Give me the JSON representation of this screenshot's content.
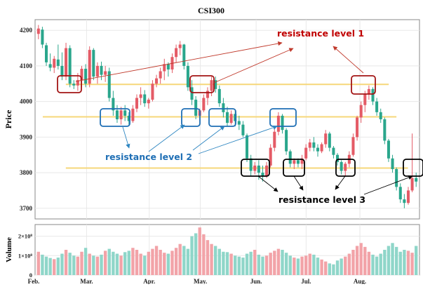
{
  "chart_data": [
    {
      "type": "candlestick",
      "title": "CSI300",
      "ylabel": "Price",
      "ylim": [
        3670,
        4230
      ],
      "yticks": [
        3700,
        3800,
        3900,
        4000,
        4100,
        4200
      ],
      "grid": true,
      "x_month_labels": [
        "Feb.",
        "Mar.",
        "Apr.",
        "May.",
        "Jun.",
        "Jul.",
        "Aug."
      ],
      "up_color": "#e45b66",
      "down_color": "#2aa68c",
      "ohlc": [
        [
          4190,
          4215,
          4175,
          4205
        ],
        [
          4202,
          4210,
          4150,
          4160
        ],
        [
          4158,
          4165,
          4100,
          4110
        ],
        [
          4105,
          4135,
          4085,
          4095
        ],
        [
          4095,
          4128,
          4080,
          4120
        ],
        [
          4118,
          4160,
          4090,
          4100
        ],
        [
          4100,
          4138,
          4060,
          4070
        ],
        [
          4070,
          4165,
          4060,
          4150
        ],
        [
          4150,
          4158,
          4040,
          4050
        ],
        [
          4050,
          4060,
          4035,
          4045
        ],
        [
          4045,
          4080,
          4030,
          4060
        ],
        [
          4060,
          4100,
          4040,
          4092
        ],
        [
          4092,
          4105,
          4040,
          4050
        ],
        [
          4050,
          4155,
          4040,
          4145
        ],
        [
          4145,
          4150,
          4060,
          4070
        ],
        [
          4070,
          4110,
          4050,
          4100
        ],
        [
          4100,
          4112,
          4060,
          4075
        ],
        [
          4075,
          4100,
          4055,
          4085
        ],
        [
          4085,
          4095,
          4000,
          4010
        ],
        [
          4010,
          4030,
          3960,
          3975
        ],
        [
          3975,
          3990,
          3940,
          3950
        ],
        [
          3950,
          3985,
          3935,
          3975
        ],
        [
          3975,
          3990,
          3945,
          3960
        ],
        [
          3960,
          3970,
          3935,
          3945
        ],
        [
          3945,
          3990,
          3940,
          3980
        ],
        [
          3980,
          4020,
          3970,
          4010
        ],
        [
          4010,
          4040,
          3990,
          4020
        ],
        [
          4020,
          4032,
          3985,
          3995
        ],
        [
          3995,
          4010,
          3980,
          4005
        ],
        [
          4005,
          4060,
          4000,
          4050
        ],
        [
          4050,
          4075,
          4040,
          4065
        ],
        [
          4065,
          4095,
          4050,
          4085
        ],
        [
          4085,
          4120,
          4060,
          4105
        ],
        [
          4105,
          4110,
          4070,
          4090
        ],
        [
          4090,
          4135,
          4080,
          4125
        ],
        [
          4125,
          4160,
          4110,
          4150
        ],
        [
          4150,
          4170,
          4130,
          4160
        ],
        [
          4160,
          4162,
          4090,
          4100
        ],
        [
          4100,
          4110,
          4030,
          4040
        ],
        [
          4040,
          4060,
          3990,
          4005
        ],
        [
          4005,
          4015,
          3950,
          3960
        ],
        [
          3960,
          3980,
          3945,
          3975
        ],
        [
          3975,
          4020,
          3970,
          4010
        ],
        [
          4010,
          4040,
          3990,
          4030
        ],
        [
          4030,
          4070,
          4015,
          4060
        ],
        [
          4060,
          4070,
          4025,
          4035
        ],
        [
          4035,
          4045,
          3985,
          3995
        ],
        [
          3995,
          4010,
          3955,
          3970
        ],
        [
          3970,
          3985,
          3930,
          3940
        ],
        [
          3940,
          3975,
          3935,
          3965
        ],
        [
          3965,
          3975,
          3930,
          3945
        ],
        [
          3945,
          3960,
          3920,
          3935
        ],
        [
          3935,
          3945,
          3900,
          3905
        ],
        [
          3905,
          3910,
          3830,
          3840
        ],
        [
          3840,
          3850,
          3790,
          3805
        ],
        [
          3805,
          3830,
          3795,
          3820
        ],
        [
          3820,
          3835,
          3780,
          3800
        ],
        [
          3800,
          3820,
          3775,
          3790
        ],
        [
          3790,
          3830,
          3785,
          3820
        ],
        [
          3820,
          3880,
          3815,
          3870
        ],
        [
          3870,
          3925,
          3860,
          3915
        ],
        [
          3915,
          3970,
          3905,
          3960
        ],
        [
          3960,
          3965,
          3910,
          3920
        ],
        [
          3920,
          3925,
          3850,
          3860
        ],
        [
          3860,
          3865,
          3815,
          3825
        ],
        [
          3825,
          3840,
          3810,
          3835
        ],
        [
          3835,
          3840,
          3815,
          3825
        ],
        [
          3825,
          3850,
          3810,
          3840
        ],
        [
          3840,
          3880,
          3835,
          3870
        ],
        [
          3870,
          3895,
          3860,
          3885
        ],
        [
          3885,
          3900,
          3860,
          3870
        ],
        [
          3870,
          3880,
          3845,
          3860
        ],
        [
          3860,
          3885,
          3855,
          3880
        ],
        [
          3880,
          3920,
          3870,
          3910
        ],
        [
          3910,
          3915,
          3860,
          3870
        ],
        [
          3870,
          3875,
          3840,
          3850
        ],
        [
          3850,
          3855,
          3820,
          3830
        ],
        [
          3830,
          3835,
          3795,
          3805
        ],
        [
          3805,
          3830,
          3790,
          3825
        ],
        [
          3825,
          3860,
          3815,
          3850
        ],
        [
          3850,
          3910,
          3845,
          3900
        ],
        [
          3900,
          3960,
          3890,
          3955
        ],
        [
          3955,
          4000,
          3940,
          3990
        ],
        [
          3990,
          4030,
          3970,
          4020
        ],
        [
          4020,
          4045,
          4005,
          4035
        ],
        [
          4035,
          4040,
          3990,
          4000
        ],
        [
          4000,
          4010,
          3960,
          3970
        ],
        [
          3970,
          3980,
          3940,
          3950
        ],
        [
          3950,
          3955,
          3880,
          3890
        ],
        [
          3890,
          3895,
          3830,
          3840
        ],
        [
          3840,
          3850,
          3800,
          3810
        ],
        [
          3810,
          3815,
          3750,
          3760
        ],
        [
          3760,
          3770,
          3715,
          3725
        ],
        [
          3725,
          3740,
          3700,
          3715
        ],
        [
          3715,
          3760,
          3710,
          3750
        ],
        [
          3750,
          3910,
          3745,
          3785
        ],
        [
          3785,
          3800,
          3760,
          3775
        ]
      ],
      "resistance_levels": [
        {
          "price": 4048,
          "x_range": [
            0.08,
            0.92
          ]
        },
        {
          "price": 3957,
          "x_range": [
            0.02,
            0.94
          ]
        },
        {
          "price": 3813,
          "x_range": [
            0.08,
            0.97
          ]
        }
      ],
      "annotations": [
        "resistance level 1",
        "resistance level 2",
        "resistance level 3"
      ],
      "annotation_colors": [
        "#c00000",
        "#1f6fb5",
        "#000000"
      ]
    },
    {
      "type": "bar",
      "ylabel": "Volume",
      "ylim": [
        0,
        260000000
      ],
      "yticks": [
        0,
        100000000,
        200000000
      ],
      "ytick_labels": [
        "0",
        "1×10⁸",
        "2×10⁸"
      ],
      "x_month_labels": [
        "Feb.",
        "Mar.",
        "Apr.",
        "May.",
        "Jun.",
        "Jul.",
        "Aug."
      ],
      "volume_millions": [
        120,
        105,
        95,
        88,
        82,
        90,
        110,
        130,
        115,
        100,
        95,
        120,
        140,
        110,
        100,
        95,
        105,
        125,
        135,
        120,
        110,
        100,
        118,
        125,
        140,
        130,
        110,
        100,
        120,
        135,
        150,
        130,
        115,
        110,
        125,
        140,
        160,
        150,
        135,
        200,
        215,
        245,
        210,
        180,
        160,
        150,
        135,
        120,
        118,
        110,
        100,
        95,
        90,
        110,
        120,
        130,
        105,
        95,
        100,
        115,
        125,
        135,
        130,
        115,
        100,
        90,
        85,
        95,
        100,
        110,
        105,
        90,
        80,
        70,
        60,
        55,
        75,
        85,
        95,
        110,
        130,
        150,
        165,
        145,
        120,
        105,
        95,
        110,
        130,
        150,
        165,
        145,
        120,
        130,
        125,
        115,
        150
      ]
    }
  ]
}
